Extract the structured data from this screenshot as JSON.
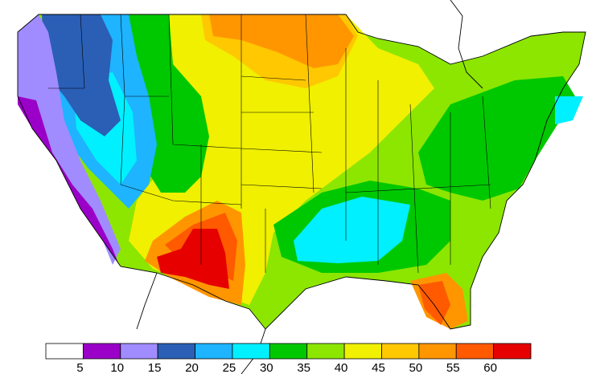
{
  "legend": {
    "levels": [
      5,
      10,
      15,
      20,
      25,
      30,
      35,
      40,
      45,
      50,
      55,
      60
    ],
    "colors": [
      "#ffffff",
      "#9b00c8",
      "#a08cff",
      "#2a5fb5",
      "#1eb4ff",
      "#00f0ff",
      "#00c800",
      "#8ce600",
      "#f0f000",
      "#ffc800",
      "#ff9600",
      "#ff5a00",
      "#e60000"
    ]
  }
}
